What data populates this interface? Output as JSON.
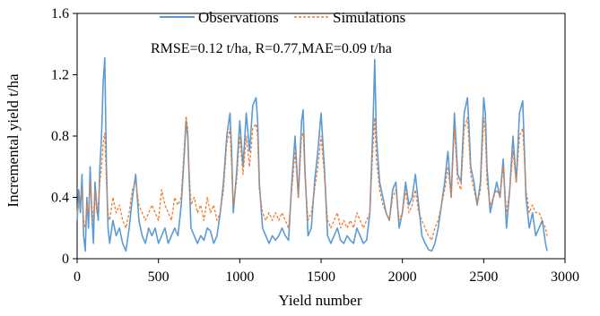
{
  "chart_data": {
    "type": "line",
    "title": "",
    "xlabel": "Yield number",
    "ylabel": "Incremental yield t/ha",
    "xlim": [
      0,
      3000
    ],
    "ylim": [
      0,
      1.6
    ],
    "x_ticks": [
      "0",
      "500",
      "1000",
      "1500",
      "2000",
      "2500",
      "3000"
    ],
    "y_ticks": [
      "0",
      "0.4",
      "0.8",
      "1.2",
      "1.6"
    ],
    "grid": false,
    "legend_position": "top-center",
    "annotation": "RMSE=0.12 t/ha, R=0.77,MAE=0.09 t/ha",
    "colors": {
      "observations": "#5b9bd5",
      "simulations": "#ed7d31"
    },
    "series": [
      {
        "name": "Observations",
        "style": "solid",
        "x": [
          0,
          10,
          20,
          30,
          40,
          50,
          60,
          70,
          80,
          90,
          100,
          110,
          120,
          130,
          140,
          150,
          160,
          170,
          180,
          190,
          200,
          220,
          240,
          260,
          280,
          300,
          320,
          340,
          360,
          380,
          400,
          420,
          440,
          460,
          480,
          500,
          520,
          540,
          560,
          580,
          600,
          620,
          640,
          660,
          670,
          680,
          690,
          700,
          720,
          740,
          760,
          780,
          800,
          820,
          840,
          860,
          880,
          900,
          920,
          940,
          950,
          960,
          980,
          1000,
          1020,
          1040,
          1060,
          1080,
          1100,
          1110,
          1120,
          1140,
          1160,
          1180,
          1200,
          1220,
          1240,
          1260,
          1280,
          1300,
          1320,
          1340,
          1360,
          1380,
          1390,
          1400,
          1420,
          1440,
          1460,
          1480,
          1500,
          1520,
          1540,
          1560,
          1580,
          1600,
          1620,
          1640,
          1660,
          1680,
          1700,
          1720,
          1740,
          1760,
          1780,
          1800,
          1820,
          1830,
          1840,
          1860,
          1880,
          1900,
          1920,
          1940,
          1960,
          1980,
          2000,
          2020,
          2040,
          2060,
          2080,
          2100,
          2120,
          2140,
          2160,
          2180,
          2200,
          2220,
          2240,
          2260,
          2280,
          2300,
          2320,
          2340,
          2360,
          2380,
          2400,
          2410,
          2420,
          2440,
          2460,
          2480,
          2500,
          2510,
          2520,
          2540,
          2560,
          2580,
          2600,
          2620,
          2640,
          2660,
          2680,
          2700,
          2720,
          2740,
          2760,
          2780,
          2800,
          2820,
          2840,
          2860,
          2880,
          2890
        ],
        "y": [
          0.25,
          0.45,
          0.3,
          0.55,
          0.15,
          0.05,
          0.4,
          0.2,
          0.6,
          0.3,
          0.1,
          0.5,
          0.35,
          0.25,
          0.6,
          0.8,
          1.15,
          1.31,
          0.6,
          0.2,
          0.1,
          0.25,
          0.15,
          0.2,
          0.1,
          0.05,
          0.2,
          0.4,
          0.55,
          0.25,
          0.15,
          0.1,
          0.2,
          0.15,
          0.2,
          0.1,
          0.15,
          0.2,
          0.1,
          0.15,
          0.2,
          0.15,
          0.35,
          0.7,
          0.9,
          0.8,
          0.5,
          0.2,
          0.15,
          0.1,
          0.15,
          0.12,
          0.2,
          0.18,
          0.1,
          0.15,
          0.3,
          0.5,
          0.8,
          0.95,
          0.7,
          0.3,
          0.55,
          0.9,
          0.6,
          0.95,
          0.7,
          1.0,
          1.05,
          0.9,
          0.5,
          0.2,
          0.15,
          0.1,
          0.15,
          0.12,
          0.15,
          0.2,
          0.15,
          0.12,
          0.5,
          0.8,
          0.4,
          0.9,
          0.97,
          0.6,
          0.15,
          0.2,
          0.5,
          0.7,
          0.95,
          0.6,
          0.15,
          0.1,
          0.15,
          0.2,
          0.12,
          0.1,
          0.15,
          0.12,
          0.1,
          0.2,
          0.15,
          0.1,
          0.12,
          0.3,
          0.9,
          1.3,
          0.8,
          0.5,
          0.4,
          0.3,
          0.25,
          0.45,
          0.5,
          0.2,
          0.3,
          0.5,
          0.35,
          0.4,
          0.55,
          0.35,
          0.15,
          0.1,
          0.06,
          0.05,
          0.1,
          0.2,
          0.35,
          0.5,
          0.7,
          0.4,
          0.95,
          0.55,
          0.5,
          0.95,
          1.05,
          0.85,
          0.6,
          0.5,
          0.35,
          0.5,
          1.05,
          0.95,
          0.6,
          0.3,
          0.4,
          0.5,
          0.4,
          0.65,
          0.2,
          0.45,
          0.8,
          0.5,
          0.95,
          1.03,
          0.4,
          0.2,
          0.3,
          0.15,
          0.2,
          0.25,
          0.1,
          0.05
        ]
      },
      {
        "name": "Simulations",
        "style": "dashed",
        "x": [
          0,
          10,
          20,
          30,
          40,
          50,
          60,
          70,
          80,
          90,
          100,
          110,
          120,
          130,
          140,
          150,
          160,
          170,
          180,
          190,
          200,
          220,
          240,
          260,
          280,
          300,
          320,
          340,
          360,
          380,
          400,
          420,
          440,
          460,
          480,
          500,
          520,
          540,
          560,
          580,
          600,
          620,
          640,
          660,
          670,
          680,
          690,
          700,
          720,
          740,
          760,
          780,
          800,
          820,
          840,
          860,
          880,
          900,
          920,
          940,
          950,
          960,
          980,
          1000,
          1020,
          1040,
          1060,
          1080,
          1100,
          1110,
          1120,
          1140,
          1160,
          1180,
          1200,
          1220,
          1240,
          1260,
          1280,
          1300,
          1320,
          1340,
          1360,
          1380,
          1390,
          1400,
          1420,
          1440,
          1460,
          1480,
          1500,
          1520,
          1540,
          1560,
          1580,
          1600,
          1620,
          1640,
          1660,
          1680,
          1700,
          1720,
          1740,
          1760,
          1780,
          1800,
          1820,
          1830,
          1840,
          1860,
          1880,
          1900,
          1920,
          1940,
          1960,
          1980,
          2000,
          2020,
          2040,
          2060,
          2080,
          2100,
          2120,
          2140,
          2160,
          2180,
          2200,
          2220,
          2240,
          2260,
          2280,
          2300,
          2320,
          2340,
          2360,
          2380,
          2400,
          2410,
          2420,
          2440,
          2460,
          2480,
          2500,
          2510,
          2520,
          2540,
          2560,
          2580,
          2600,
          2620,
          2640,
          2660,
          2680,
          2700,
          2720,
          2740,
          2760,
          2780,
          2800,
          2820,
          2840,
          2860,
          2880,
          2890
        ],
        "y": [
          0.3,
          0.35,
          0.4,
          0.45,
          0.25,
          0.2,
          0.35,
          0.3,
          0.5,
          0.35,
          0.25,
          0.45,
          0.3,
          0.35,
          0.5,
          0.6,
          0.75,
          0.82,
          0.5,
          0.3,
          0.25,
          0.4,
          0.3,
          0.35,
          0.25,
          0.2,
          0.3,
          0.45,
          0.5,
          0.35,
          0.3,
          0.25,
          0.3,
          0.35,
          0.3,
          0.25,
          0.45,
          0.35,
          0.3,
          0.25,
          0.4,
          0.35,
          0.4,
          0.75,
          0.93,
          0.85,
          0.55,
          0.35,
          0.4,
          0.3,
          0.35,
          0.25,
          0.4,
          0.3,
          0.35,
          0.25,
          0.3,
          0.45,
          0.75,
          0.85,
          0.6,
          0.35,
          0.5,
          0.8,
          0.55,
          0.8,
          0.6,
          0.85,
          0.88,
          0.8,
          0.45,
          0.3,
          0.25,
          0.3,
          0.25,
          0.3,
          0.25,
          0.3,
          0.25,
          0.2,
          0.45,
          0.7,
          0.4,
          0.8,
          0.82,
          0.55,
          0.25,
          0.3,
          0.45,
          0.6,
          0.8,
          0.55,
          0.25,
          0.2,
          0.25,
          0.3,
          0.2,
          0.25,
          0.2,
          0.25,
          0.2,
          0.3,
          0.25,
          0.2,
          0.25,
          0.3,
          0.75,
          0.92,
          0.65,
          0.45,
          0.35,
          0.3,
          0.25,
          0.4,
          0.45,
          0.25,
          0.3,
          0.45,
          0.3,
          0.35,
          0.45,
          0.3,
          0.25,
          0.2,
          0.15,
          0.12,
          0.2,
          0.25,
          0.35,
          0.45,
          0.6,
          0.4,
          0.85,
          0.5,
          0.45,
          0.85,
          0.92,
          0.75,
          0.55,
          0.45,
          0.35,
          0.45,
          0.92,
          0.82,
          0.5,
          0.35,
          0.4,
          0.45,
          0.4,
          0.6,
          0.3,
          0.45,
          0.7,
          0.5,
          0.8,
          0.85,
          0.45,
          0.3,
          0.35,
          0.3,
          0.3,
          0.25,
          0.2,
          0.15
        ]
      }
    ]
  }
}
